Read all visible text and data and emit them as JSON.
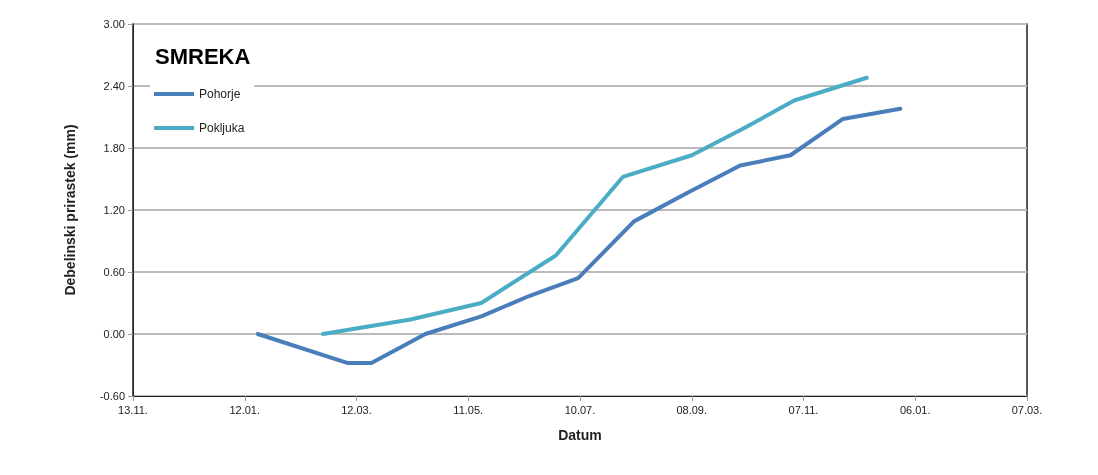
{
  "chart_data": {
    "type": "line",
    "title": "SMREKA",
    "xlabel": "Datum",
    "ylabel": "Debelinski prirastek (mm)",
    "series": [
      {
        "name": "Pohorje",
        "color": "#4a7ebb",
        "x": [
          "2012-01-19",
          "2012-03-07",
          "2012-03-20",
          "2012-04-18",
          "2012-05-18",
          "2012-06-13",
          "2012-07-09",
          "2012-08-08",
          "2012-09-06",
          "2012-10-04",
          "2012-10-31",
          "2012-11-28",
          "2012-12-29"
        ],
        "values": [
          0,
          -0.28,
          -0.28,
          0,
          0.17,
          0.37,
          0.54,
          1.09,
          1.37,
          1.63,
          1.73,
          2.08,
          2.18
        ]
      },
      {
        "name": "Pokljuka",
        "color": "#4bacc6",
        "x": [
          "2012-02-23",
          "2012-04-10",
          "2012-05-18",
          "2012-06-27",
          "2012-08-02",
          "2012-09-08",
          "2012-10-07",
          "2012-11-02",
          "2012-12-11"
        ],
        "values": [
          0,
          0.14,
          0.3,
          0.76,
          1.52,
          1.73,
          2.0,
          2.26,
          2.48
        ]
      }
    ],
    "xlim": [
      "2011-11-13",
      "2013-03-07"
    ],
    "xticks": [
      {
        "value": "2011-11-13",
        "label": "13.11."
      },
      {
        "value": "2012-01-12",
        "label": "12.01."
      },
      {
        "value": "2012-03-12",
        "label": "12.03."
      },
      {
        "value": "2012-05-11",
        "label": "11.05."
      },
      {
        "value": "2012-07-10",
        "label": "10.07."
      },
      {
        "value": "2012-09-08",
        "label": "08.09."
      },
      {
        "value": "2012-11-07",
        "label": "07.11."
      },
      {
        "value": "2013-01-06",
        "label": "06.01."
      },
      {
        "value": "2013-03-07",
        "label": "07.03."
      }
    ],
    "ylim": [
      -0.6,
      3
    ],
    "yticks": [
      {
        "value": -0.6,
        "label": "-0.60"
      },
      {
        "value": 0,
        "label": "0.00"
      },
      {
        "value": 0.6,
        "label": "0.60"
      },
      {
        "value": 1.2,
        "label": "1.20"
      },
      {
        "value": 1.8,
        "label": "1.80"
      },
      {
        "value": 2.4,
        "label": "2.40"
      },
      {
        "value": 3,
        "label": "3.00"
      }
    ],
    "grid": "y",
    "legend": "top left",
    "marker": "none",
    "line_style": "solid"
  }
}
